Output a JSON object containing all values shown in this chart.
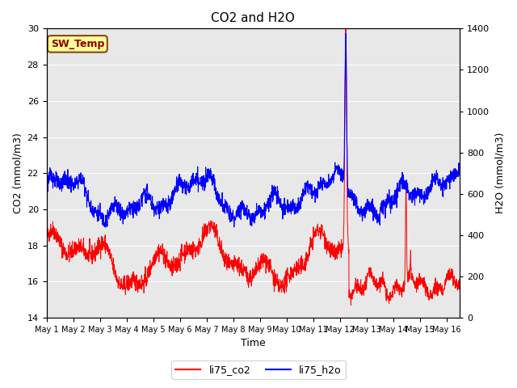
{
  "title": "CO2 and H2O",
  "xlabel": "Time",
  "ylabel_left": "CO2 (mmol/m3)",
  "ylabel_right": "H2O (mmol/m3)",
  "ylim_left": [
    14,
    30
  ],
  "ylim_right": [
    0,
    1400
  ],
  "yticks_left": [
    14,
    16,
    18,
    20,
    22,
    24,
    26,
    28,
    30
  ],
  "yticks_right": [
    0,
    200,
    400,
    600,
    800,
    1000,
    1200,
    1400
  ],
  "xtick_labels": [
    "May 1",
    "May 2",
    "May 3",
    "May 4",
    "May 5",
    "May 6",
    "May 7",
    "May 8",
    "May 9",
    "May 10",
    "May 11",
    "May 12",
    "May 13",
    "May 14",
    "May 15",
    "May 16"
  ],
  "annotation_text": "SW_Temp",
  "annotation_facecolor": "#FFFF99",
  "annotation_edgecolor": "#8B4513",
  "annotation_textcolor": "#8B0000",
  "line_co2_color": "#FF0000",
  "line_h2o_color": "#0000FF",
  "legend_co2": "li75_co2",
  "legend_h2o": "li75_h2o",
  "bg_color": "#E8E8E8",
  "fig_bg_color": "#FFFFFF",
  "n_points": 2000
}
